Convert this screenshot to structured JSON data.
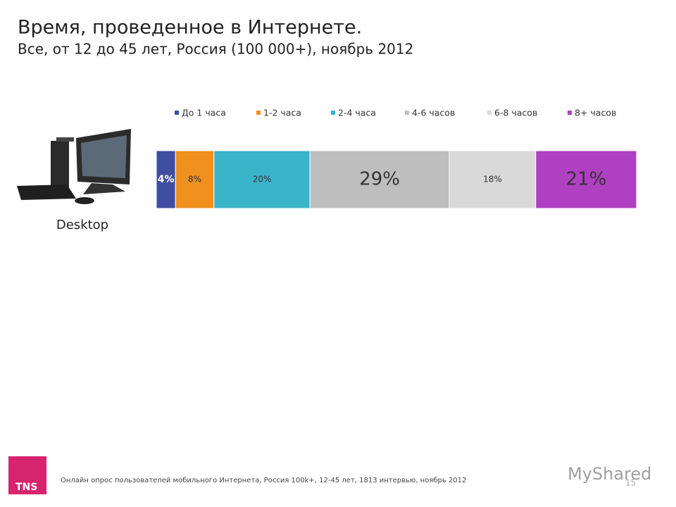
{
  "chart_data": {
    "type": "bar",
    "stacked": true,
    "title": "Время, проведенное в Интернете.",
    "subtitle": "Все, от 12 до 45 лет, Россия (100 000+), ноябрь 2012",
    "categories": [
      "Desktop"
    ],
    "xlim": [
      0,
      100
    ],
    "series": [
      {
        "name": "До 1 часа",
        "color": "#3f4ea0",
        "values": [
          4
        ],
        "value_labels": [
          "4%"
        ]
      },
      {
        "name": "1-2 часа",
        "color": "#f0901e",
        "values": [
          8
        ],
        "value_labels": [
          "8%"
        ]
      },
      {
        "name": "2-4 часа",
        "color": "#3ab4c9",
        "values": [
          20
        ],
        "value_labels": [
          "20%"
        ]
      },
      {
        "name": "4-6 часов",
        "color": "#bebebe",
        "values": [
          29
        ],
        "value_labels": [
          "29%"
        ]
      },
      {
        "name": "6-8 часов",
        "color": "#d9d9d9",
        "values": [
          18
        ],
        "value_labels": [
          "18%"
        ]
      },
      {
        "name": "8+ часов",
        "color": "#b040c2",
        "values": [
          21
        ],
        "value_labels": [
          "21%"
        ]
      }
    ]
  },
  "footnote": "Онлайн опрос пользователей мобильного Интернета, Россия 100k+, 12-45 лет, 1813 интервью, ноябрь 2012",
  "page_number": "15",
  "logo": "TNS",
  "watermark": "MyShared"
}
